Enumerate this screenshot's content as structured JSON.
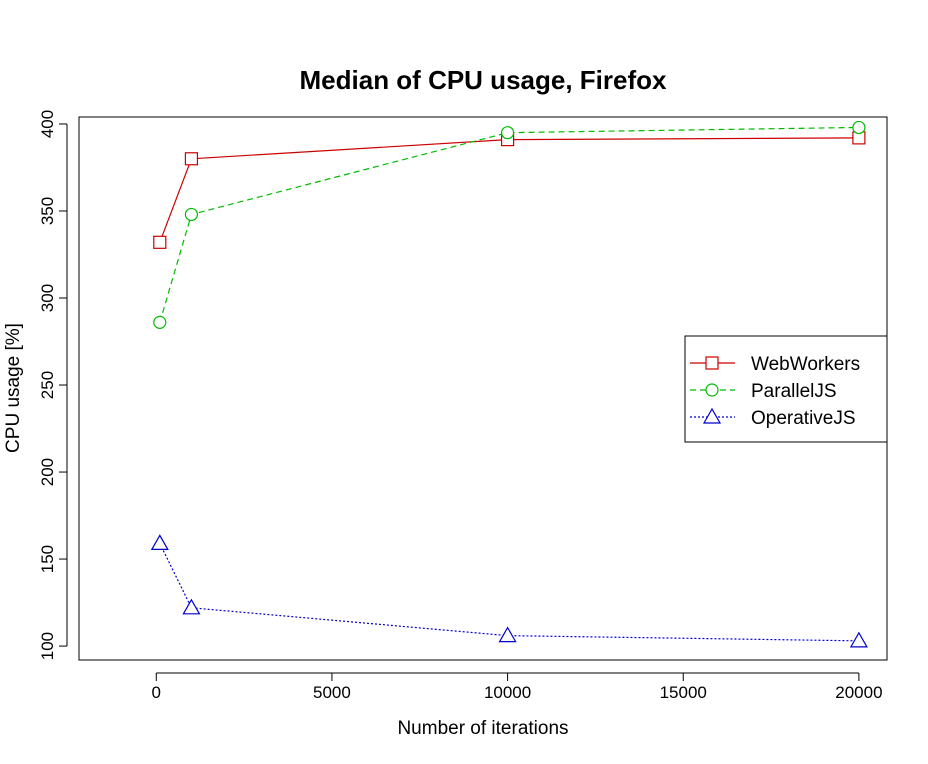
{
  "chart_data": {
    "type": "line",
    "title": "Median of CPU usage, Firefox",
    "xlabel": "Number of iterations",
    "ylabel": "CPU usage [%]",
    "xlim": [
      -2200,
      20800
    ],
    "ylim": [
      92,
      404
    ],
    "x_ticks": [
      0,
      5000,
      10000,
      15000,
      20000
    ],
    "y_ticks": [
      100,
      150,
      200,
      250,
      300,
      350,
      400
    ],
    "x": [
      100,
      1000,
      10000,
      20000
    ],
    "series": [
      {
        "name": "WebWorkers",
        "values": [
          332,
          380,
          391,
          392
        ],
        "color": "#cc0000",
        "marker": "square",
        "line_style": "solid"
      },
      {
        "name": "ParallelJS",
        "values": [
          286,
          348,
          395,
          398
        ],
        "color": "#00bb00",
        "marker": "circle",
        "line_style": "dashed"
      },
      {
        "name": "OperativeJS",
        "values": [
          159,
          122,
          106,
          103
        ],
        "color": "#0000cc",
        "marker": "triangle",
        "line_style": "dotted"
      }
    ],
    "legend": {
      "position": "right",
      "entries": [
        "WebWorkers",
        "ParallelJS",
        "OperativeJS"
      ]
    },
    "grid": false
  }
}
